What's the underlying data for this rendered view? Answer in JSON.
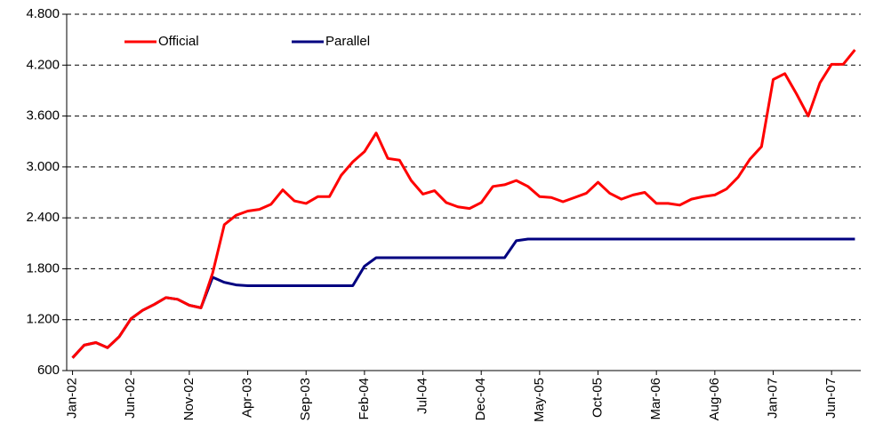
{
  "chart_data": {
    "type": "line",
    "categories": [
      "Jan-02",
      null,
      null,
      null,
      null,
      "Jun-02",
      null,
      null,
      null,
      null,
      "Nov-02",
      null,
      null,
      null,
      null,
      "Apr-03",
      null,
      null,
      null,
      null,
      "Sep-03",
      null,
      null,
      null,
      null,
      "Feb-04",
      null,
      null,
      null,
      null,
      "Jul-04",
      null,
      null,
      null,
      null,
      "Dec-04",
      null,
      null,
      null,
      null,
      "May-05",
      null,
      null,
      null,
      null,
      "Oct-05",
      null,
      null,
      null,
      null,
      "Mar-06",
      null,
      null,
      null,
      null,
      "Aug-06",
      null,
      null,
      null,
      null,
      "Jan-07",
      null,
      null,
      null,
      null,
      "Jun-07",
      null,
      null
    ],
    "series": [
      {
        "name": "Official",
        "color": "#ff0000",
        "values": [
          750,
          900,
          930,
          870,
          1000,
          1210,
          1310,
          1380,
          1460,
          1440,
          1370,
          1340,
          1750,
          2320,
          2430,
          2480,
          2500,
          2560,
          2730,
          2600,
          2570,
          2650,
          2650,
          2900,
          3060,
          3180,
          3400,
          3100,
          3080,
          2840,
          2680,
          2720,
          2580,
          2530,
          2510,
          2580,
          2770,
          2790,
          2840,
          2770,
          2650,
          2640,
          2590,
          2640,
          2690,
          2820,
          2690,
          2620,
          2670,
          2700,
          2570,
          2570,
          2550,
          2620,
          2650,
          2670,
          2740,
          2880,
          3090,
          3240,
          4030,
          4100,
          3860,
          3600,
          3990,
          4210,
          4210,
          4380
        ]
      },
      {
        "name": "Parallel",
        "color": "#000080",
        "values": [
          750,
          900,
          930,
          870,
          1000,
          1210,
          1310,
          1380,
          1460,
          1440,
          1370,
          1340,
          1700,
          1640,
          1610,
          1600,
          1600,
          1600,
          1600,
          1600,
          1600,
          1600,
          1600,
          1600,
          1600,
          1830,
          1930,
          1930,
          1930,
          1930,
          1930,
          1930,
          1930,
          1930,
          1930,
          1930,
          1930,
          1930,
          2130,
          2150,
          2150,
          2150,
          2150,
          2150,
          2150,
          2150,
          2150,
          2150,
          2150,
          2150,
          2150,
          2150,
          2150,
          2150,
          2150,
          2150,
          2150,
          2150,
          2150,
          2150,
          2150,
          2150,
          2150,
          2150,
          2150,
          2150,
          2150,
          2150
        ]
      }
    ],
    "ylim": [
      600,
      4800
    ],
    "yticks": [
      600,
      {
        "value": 1200,
        "label": "1.200"
      },
      {
        "value": 1800,
        "label": "1.800"
      },
      {
        "value": 2400,
        "label": "2.400"
      },
      {
        "value": 3000,
        "label": "3.000"
      },
      {
        "value": 3600,
        "label": "3.600"
      },
      {
        "value": 4200,
        "label": "4.200"
      },
      {
        "value": 4800,
        "label": "4.800"
      }
    ],
    "grid": true,
    "legend": "top-left"
  }
}
